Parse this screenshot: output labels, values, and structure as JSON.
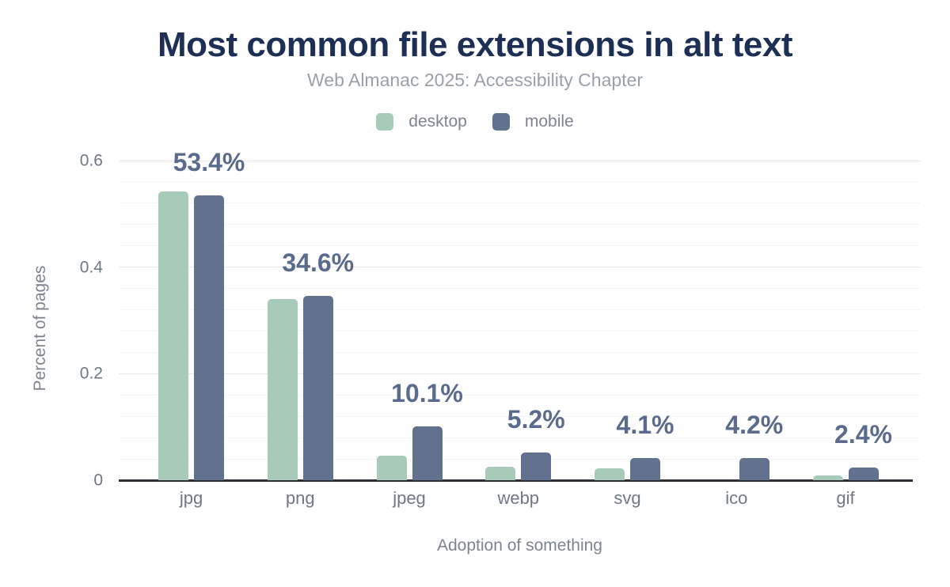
{
  "chart_data": {
    "type": "bar",
    "title": "Most common file extensions in alt text",
    "subtitle": "Web Almanac 2025: Accessibility Chapter",
    "xlabel": "Adoption of something",
    "ylabel": "Percent of pages",
    "categories": [
      "jpg",
      "png",
      "jpeg",
      "webp",
      "svg",
      "ico",
      "gif"
    ],
    "series": [
      {
        "name": "desktop",
        "values": [
          0.542,
          0.34,
          0.046,
          0.026,
          0.023,
          0,
          0.009
        ]
      },
      {
        "name": "mobile",
        "values": [
          0.534,
          0.346,
          0.101,
          0.052,
          0.041,
          0.042,
          0.024
        ]
      }
    ],
    "data_labels": [
      "53.4%",
      "34.6%",
      "10.1%",
      "5.2%",
      "4.1%",
      "4.2%",
      "2.4%"
    ],
    "data_label_series": "mobile",
    "yticks": [
      "0",
      "0.2",
      "0.4",
      "0.6"
    ],
    "ytick_values": [
      0,
      0.2,
      0.4,
      0.6
    ],
    "ylim": [
      0,
      0.6
    ],
    "minor_grid_step": 0.04,
    "grid": true,
    "legend_position": "top"
  },
  "colors": {
    "desktop": "#a8cab9",
    "mobile": "#61718e",
    "title": "#1e2f55",
    "subtitle": "#9aa0aa",
    "axis_text": "#6f7787",
    "muted_text": "#7d8490",
    "data_label": "#5a6b8d",
    "axis_line": "#2e2e35",
    "grid_major": "#e9e9e9",
    "grid_minor": "#f5f5f5"
  }
}
